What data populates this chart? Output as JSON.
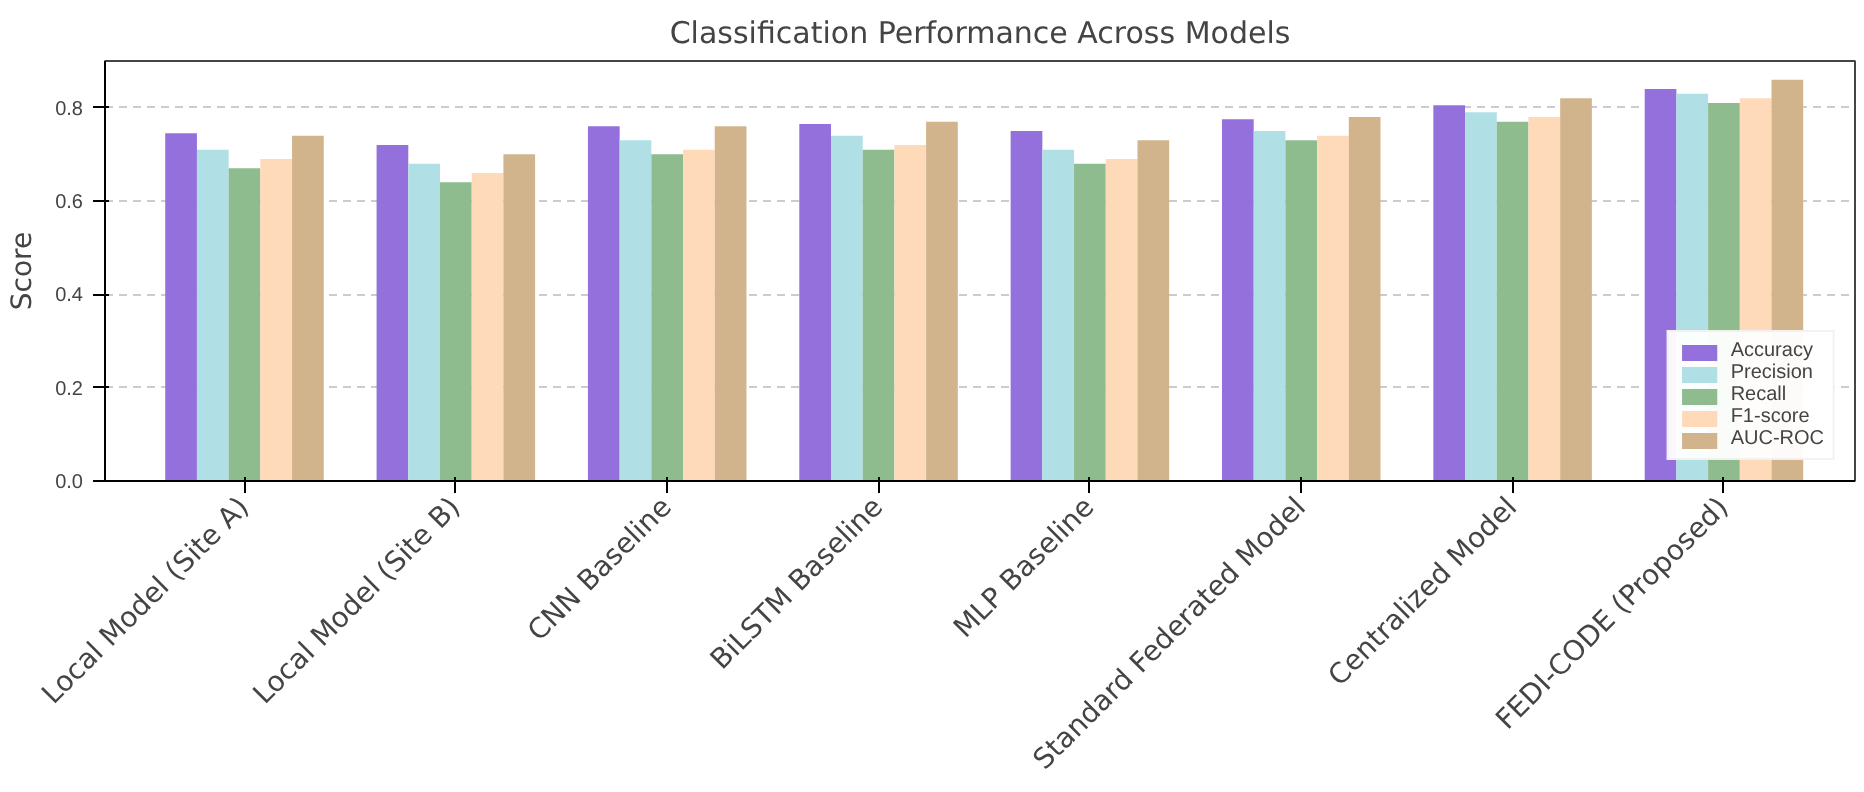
{
  "chart_data": {
    "type": "bar",
    "title": "Classification Performance Across Models",
    "ylabel": "Score",
    "categories": [
      "Local Model (Site A)",
      "Local Model (Site B)",
      "CNN Baseline",
      "BiLSTM Baseline",
      "MLP Baseline",
      "Standard Federated Model",
      "Centralized Model",
      "FEDI-CODE (Proposed)"
    ],
    "series": [
      {
        "name": "Accuracy",
        "color": "#9370db",
        "values": [
          0.745,
          0.72,
          0.76,
          0.765,
          0.75,
          0.775,
          0.805,
          0.84
        ]
      },
      {
        "name": "Precision",
        "color": "#b0e0e6",
        "values": [
          0.71,
          0.68,
          0.73,
          0.74,
          0.71,
          0.75,
          0.79,
          0.83
        ]
      },
      {
        "name": "Recall",
        "color": "#8fbc8f",
        "values": [
          0.67,
          0.64,
          0.7,
          0.71,
          0.68,
          0.73,
          0.77,
          0.81
        ]
      },
      {
        "name": "F1-score",
        "color": "#ffdab9",
        "values": [
          0.69,
          0.66,
          0.71,
          0.72,
          0.69,
          0.74,
          0.78,
          0.82
        ]
      },
      {
        "name": "AUC-ROC",
        "color": "#d2b48c",
        "values": [
          0.74,
          0.7,
          0.76,
          0.77,
          0.73,
          0.78,
          0.82,
          0.86
        ]
      }
    ],
    "ylim": [
      0,
      0.9
    ],
    "yticks": [
      {
        "value": 0,
        "label": "0.0"
      },
      0.2,
      0.4,
      0.6,
      0.8
    ],
    "grid": "y",
    "legend": "bottom right"
  }
}
